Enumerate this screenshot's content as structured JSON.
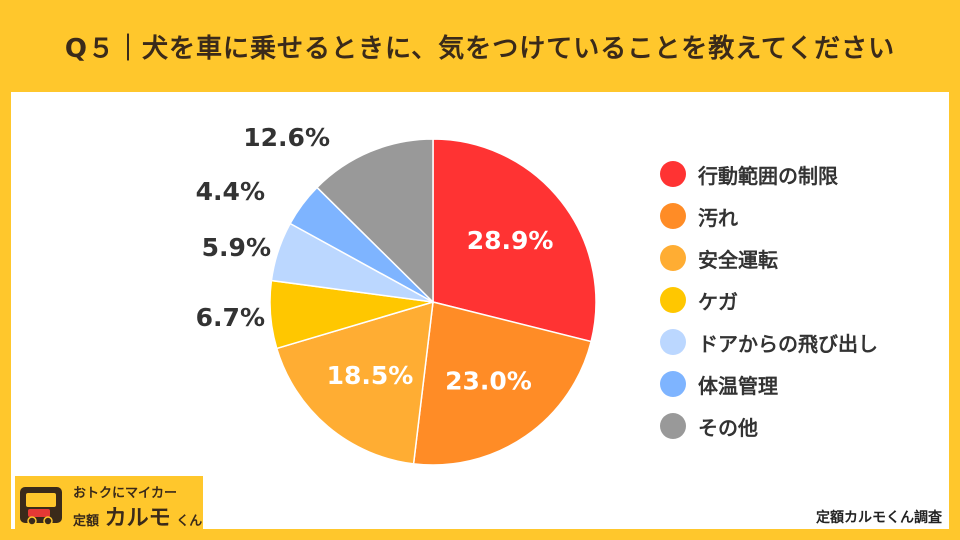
{
  "title": "Q５｜犬を車に乗せるときに、気をつけていることを教えてください",
  "chart_data": {
    "type": "pie",
    "title": "Q５｜犬を車に乗せるときに、気をつけていることを教えてください",
    "categories": [
      "行動範囲の制限",
      "汚れ",
      "安全運転",
      "ケガ",
      "ドアからの飛び出し",
      "体温管理",
      "その他"
    ],
    "values": [
      28.9,
      23.0,
      18.5,
      6.7,
      5.9,
      4.4,
      12.6
    ],
    "labels": [
      "28.9%",
      "23.0%",
      "18.5%",
      "6.7%",
      "5.9%",
      "4.4%",
      "12.6%"
    ],
    "colors": [
      "#FF3333",
      "#FF8C26",
      "#FFAD33",
      "#FFC700",
      "#BBD7FF",
      "#7EB4FF",
      "#999999"
    ],
    "legend_position": "right"
  },
  "logo": {
    "top_text": "おトクにマイカー",
    "prefix": "定額",
    "brand": "カルモ",
    "suffix": "くん"
  },
  "credit": "定額カルモくん調査"
}
